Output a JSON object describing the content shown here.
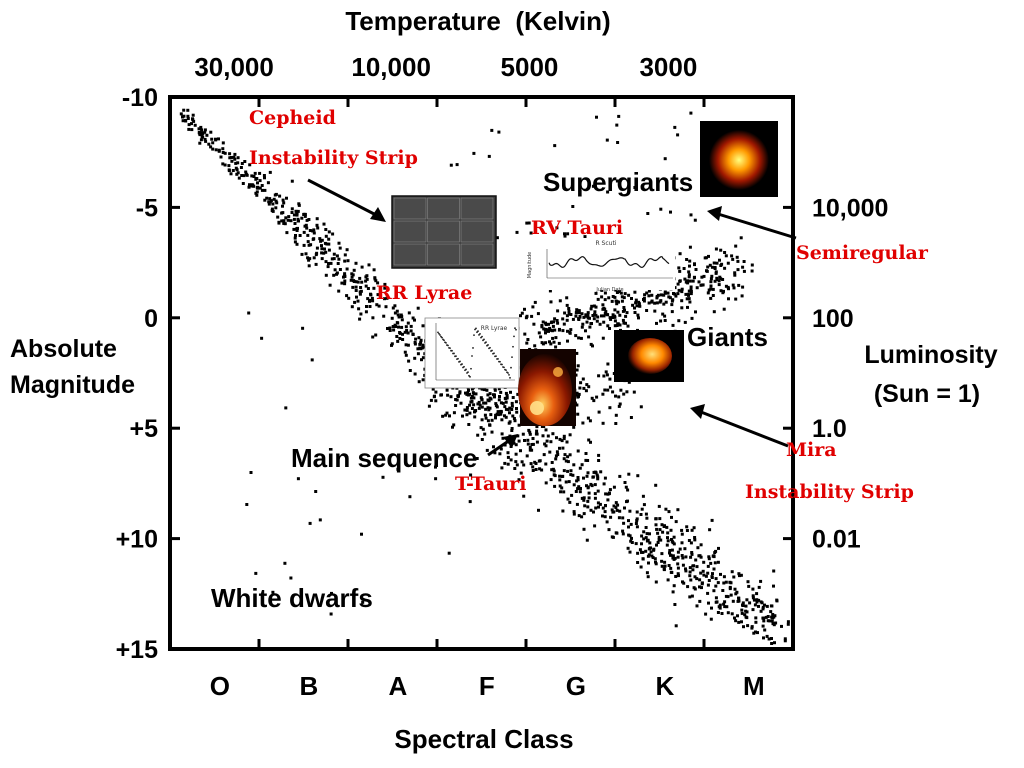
{
  "chart_data": {
    "type": "scatter",
    "title": "Temperature  (Kelvin)",
    "temperature_ticks": [
      "30,000",
      "10,000",
      "5000",
      "3000"
    ],
    "ylabel": [
      "Absolute",
      "Magnitude"
    ],
    "ylim": [
      -10,
      15
    ],
    "y_inverted": true,
    "magnitude_ticks": [
      "-10",
      "-5",
      "0",
      "+5",
      "+10",
      "+15"
    ],
    "magnitude_values": [
      -10,
      -5,
      0,
      5,
      10,
      15
    ],
    "luminosity_label": [
      "Luminosity",
      "(Sun = 1)"
    ],
    "luminosity_ticks": [
      "10,000",
      "100",
      "1.0",
      "0.01"
    ],
    "luminosity_magnitudes": [
      -5,
      0,
      5,
      10
    ],
    "xlabel": "Spectral Class",
    "spectral_classes": [
      "O",
      "B",
      "A",
      "F",
      "G",
      "K",
      "M"
    ],
    "regions": [
      "Supergiants",
      "Giants",
      "Main sequence",
      "White dwarfs"
    ],
    "variable_types": [
      "Cepheid",
      "Instability Strip",
      "RV Tauri",
      "Semiregular",
      "RR Lyrae",
      "T-Tauri",
      "Mira",
      "Instability Strip"
    ],
    "inset_rr_lyrae_title": "RR Lyrae",
    "inset_rv_tauri_title": "R Scuti",
    "inset_rv_tauri_xlabel": "Julian Date",
    "inset_rv_tauri_ylabel": "Magnitude"
  }
}
